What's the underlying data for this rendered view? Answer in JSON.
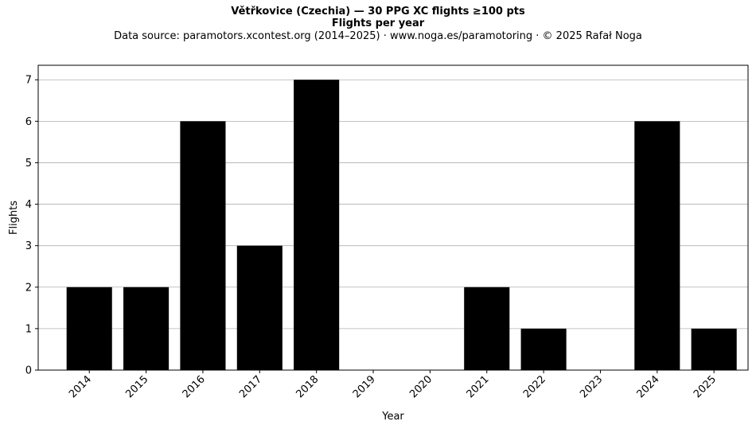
{
  "chart_data": {
    "type": "bar",
    "title": "Větřkovice (Czechia)  —  30 PPG XC flights ≥100 pts",
    "subtitle": "Flights per year",
    "source_note": "Data source: paramotors.xcontest.org (2014–2025)  ·  www.noga.es/paramotoring  ·  © 2025 Rafał Noga",
    "xlabel": "Year",
    "ylabel": "Flights",
    "categories": [
      "2014",
      "2015",
      "2016",
      "2017",
      "2018",
      "2019",
      "2020",
      "2021",
      "2022",
      "2023",
      "2024",
      "2025"
    ],
    "values": [
      2,
      2,
      6,
      3,
      7,
      0,
      0,
      2,
      1,
      0,
      6,
      1
    ],
    "ylim": [
      0,
      7.35
    ],
    "yticks": [
      0,
      1,
      2,
      3,
      4,
      5,
      6,
      7
    ],
    "grid": "horizontal",
    "bar_color": "#000000",
    "grid_color": "#b0b0b0"
  }
}
